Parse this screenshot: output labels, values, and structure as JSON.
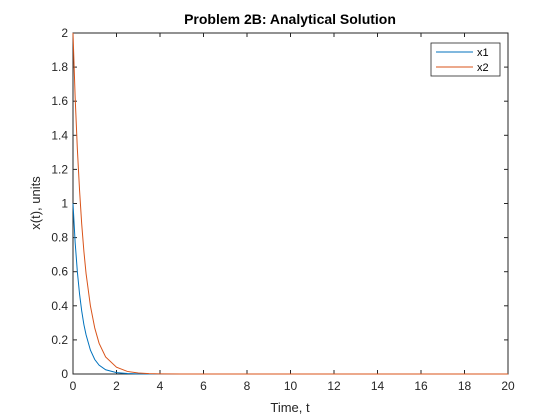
{
  "chart_data": {
    "type": "line",
    "title": "Problem 2B: Analytical Solution",
    "xlabel": "Time, t",
    "ylabel": "x(t), units",
    "xlim": [
      0,
      20
    ],
    "ylim": [
      0,
      2
    ],
    "xticks": [
      0,
      2,
      4,
      6,
      8,
      10,
      12,
      14,
      16,
      18,
      20
    ],
    "yticks": [
      0,
      0.2,
      0.4,
      0.6,
      0.8,
      1,
      1.2,
      1.4,
      1.6,
      1.8,
      2
    ],
    "grid": false,
    "legend_position": "top-right",
    "series": [
      {
        "name": "x1",
        "color": "#0072BD",
        "x": [
          0,
          0.1,
          0.2,
          0.3,
          0.4,
          0.5,
          0.6,
          0.8,
          1.0,
          1.2,
          1.5,
          2.0,
          2.5,
          3.0,
          3.5,
          4.0,
          5.0,
          6.0,
          8.0,
          10.0,
          12.0,
          14.0,
          16.0,
          18.0,
          20.0
        ],
        "y": [
          1.0,
          0.77,
          0.6,
          0.47,
          0.37,
          0.29,
          0.23,
          0.14,
          0.085,
          0.052,
          0.025,
          0.008,
          0.003,
          0.001,
          0.0,
          0.0,
          0.0,
          0.0,
          0.0,
          0.0,
          0.0,
          0.0,
          0.0,
          0.0,
          0.0
        ]
      },
      {
        "name": "x2",
        "color": "#D95319",
        "x": [
          0,
          0.1,
          0.2,
          0.3,
          0.4,
          0.5,
          0.6,
          0.8,
          1.0,
          1.2,
          1.5,
          2.0,
          2.5,
          3.0,
          3.5,
          4.0,
          5.0,
          6.0,
          8.0,
          10.0,
          12.0,
          14.0,
          16.0,
          18.0,
          20.0
        ],
        "y": [
          2.0,
          1.62,
          1.32,
          1.08,
          0.88,
          0.72,
          0.59,
          0.4,
          0.27,
          0.18,
          0.1,
          0.04,
          0.015,
          0.006,
          0.002,
          0.001,
          0.0,
          0.0,
          0.0,
          0.0,
          0.0,
          0.0,
          0.0,
          0.0,
          0.0
        ]
      }
    ]
  }
}
